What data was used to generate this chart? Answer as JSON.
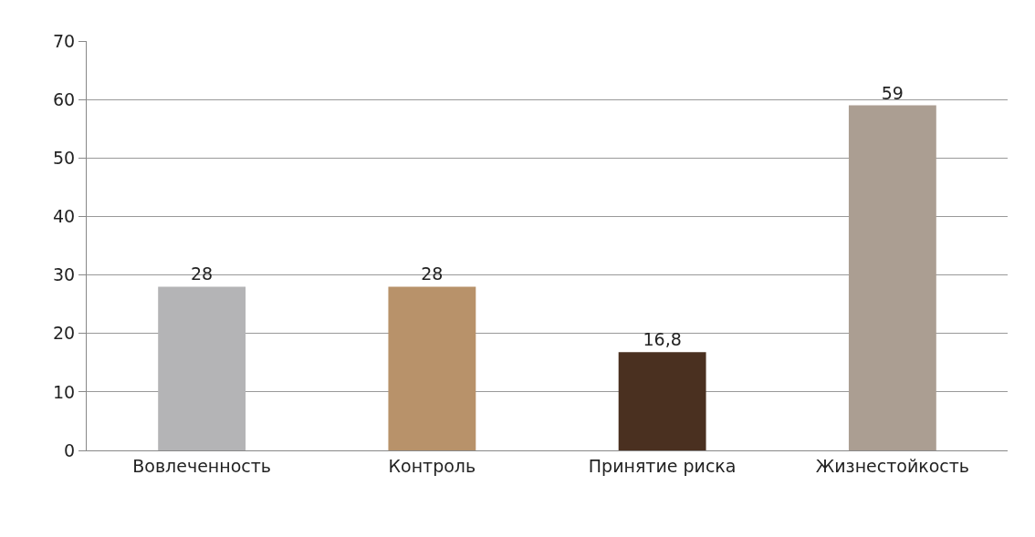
{
  "chart_data": {
    "type": "bar",
    "categories": [
      "Вовлеченность",
      "Контроль",
      "Принятие риска",
      "Жизнестойкость"
    ],
    "values": [
      28,
      28,
      16.8,
      59
    ],
    "value_labels": [
      "28",
      "28",
      "16,8",
      "59"
    ],
    "colors": [
      "#b4b4b6",
      "#b8926a",
      "#4a3020",
      "#ab9e92"
    ],
    "ylim": [
      0,
      70
    ],
    "yticks": [
      0,
      10,
      20,
      30,
      40,
      50,
      60,
      70
    ],
    "grid": "y",
    "legend": false
  }
}
